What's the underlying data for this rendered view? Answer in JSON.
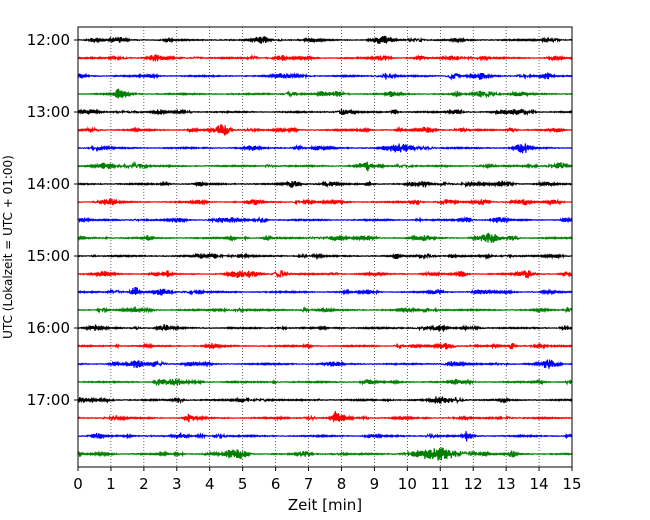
{
  "chart_data": {
    "type": "line",
    "title": "",
    "xlabel": "Zeit  [min]",
    "ylabel": "UTC (Lokalzeit = UTC + 01:00)",
    "xlim": [
      0,
      15
    ],
    "x_ticks": [
      "0",
      "1",
      "2",
      "3",
      "4",
      "5",
      "6",
      "7",
      "8",
      "9",
      "10",
      "11",
      "12",
      "13",
      "14",
      "15"
    ],
    "y_ticks": [
      "12:00",
      "13:00",
      "14:00",
      "15:00",
      "16:00",
      "17:00"
    ],
    "grid": "vertical dotted",
    "trace_colors": [
      "#000000",
      "#ff0000",
      "#0000ff",
      "#008000"
    ],
    "traces": [
      {
        "start": "12:00",
        "color": "#000000"
      },
      {
        "start": "12:15",
        "color": "#ff0000"
      },
      {
        "start": "12:30",
        "color": "#0000ff"
      },
      {
        "start": "12:45",
        "color": "#008000"
      },
      {
        "start": "13:00",
        "color": "#000000"
      },
      {
        "start": "13:15",
        "color": "#ff0000"
      },
      {
        "start": "13:30",
        "color": "#0000ff"
      },
      {
        "start": "13:45",
        "color": "#008000"
      },
      {
        "start": "14:00",
        "color": "#000000"
      },
      {
        "start": "14:15",
        "color": "#ff0000"
      },
      {
        "start": "14:30",
        "color": "#0000ff"
      },
      {
        "start": "14:45",
        "color": "#008000"
      },
      {
        "start": "15:00",
        "color": "#000000"
      },
      {
        "start": "15:15",
        "color": "#ff0000"
      },
      {
        "start": "15:30",
        "color": "#0000ff"
      },
      {
        "start": "15:45",
        "color": "#008000"
      },
      {
        "start": "16:00",
        "color": "#000000"
      },
      {
        "start": "16:15",
        "color": "#ff0000"
      },
      {
        "start": "16:30",
        "color": "#0000ff"
      },
      {
        "start": "16:45",
        "color": "#008000"
      },
      {
        "start": "17:00",
        "color": "#000000"
      },
      {
        "start": "17:15",
        "color": "#ff0000"
      },
      {
        "start": "17:30",
        "color": "#0000ff"
      },
      {
        "start": "17:45",
        "color": "#008000",
        "event_minutes": [
          9.7,
          12.5
        ]
      }
    ]
  }
}
